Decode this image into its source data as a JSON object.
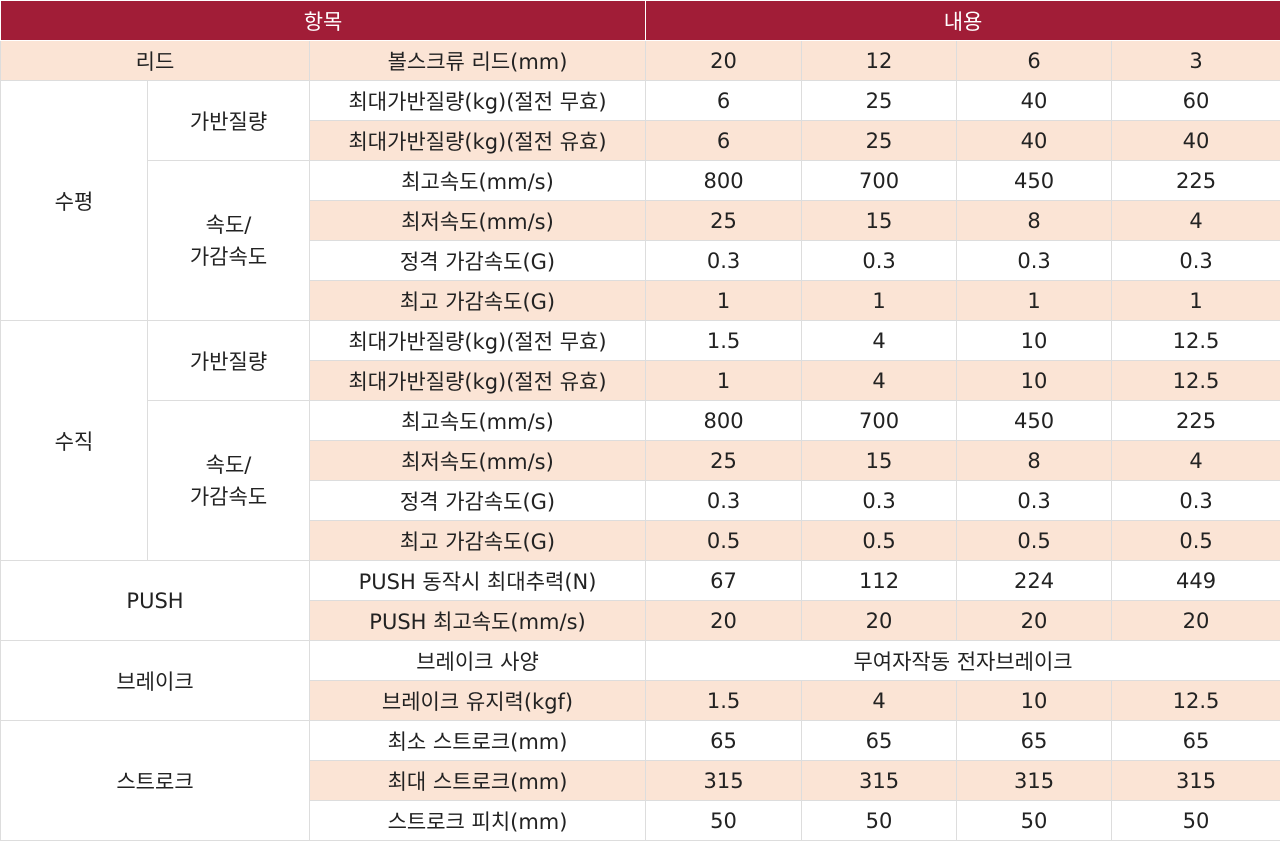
{
  "header": {
    "item": "항목",
    "content": "내용"
  },
  "lead": {
    "label": "리드",
    "sub": "볼스크류 리드(mm)",
    "values": [
      "20",
      "12",
      "6",
      "3"
    ]
  },
  "horizontal": {
    "label": "수평",
    "payload_group": "가반질량",
    "speed_group_line1": "속도/",
    "speed_group_line2": "가감속도",
    "rows": [
      {
        "label": "최대가반질량(kg)(절전 무효)",
        "values": [
          "6",
          "25",
          "40",
          "60"
        ]
      },
      {
        "label": "최대가반질량(kg)(절전 유효)",
        "values": [
          "6",
          "25",
          "40",
          "40"
        ]
      },
      {
        "label": "최고속도(mm/s)",
        "values": [
          "800",
          "700",
          "450",
          "225"
        ]
      },
      {
        "label": "최저속도(mm/s)",
        "values": [
          "25",
          "15",
          "8",
          "4"
        ]
      },
      {
        "label": "정격 가감속도(G)",
        "values": [
          "0.3",
          "0.3",
          "0.3",
          "0.3"
        ]
      },
      {
        "label": "최고 가감속도(G)",
        "values": [
          "1",
          "1",
          "1",
          "1"
        ]
      }
    ]
  },
  "vertical": {
    "label": "수직",
    "payload_group": "가반질량",
    "speed_group_line1": "속도/",
    "speed_group_line2": "가감속도",
    "rows": [
      {
        "label": "최대가반질량(kg)(절전 무효)",
        "values": [
          "1.5",
          "4",
          "10",
          "12.5"
        ]
      },
      {
        "label": "최대가반질량(kg)(절전 유효)",
        "values": [
          "1",
          "4",
          "10",
          "12.5"
        ]
      },
      {
        "label": "최고속도(mm/s)",
        "values": [
          "800",
          "700",
          "450",
          "225"
        ]
      },
      {
        "label": "최저속도(mm/s)",
        "values": [
          "25",
          "15",
          "8",
          "4"
        ]
      },
      {
        "label": "정격 가감속도(G)",
        "values": [
          "0.3",
          "0.3",
          "0.3",
          "0.3"
        ]
      },
      {
        "label": "최고 가감속도(G)",
        "values": [
          "0.5",
          "0.5",
          "0.5",
          "0.5"
        ]
      }
    ]
  },
  "push": {
    "label": "PUSH",
    "rows": [
      {
        "label": "PUSH 동작시 최대추력(N)",
        "values": [
          "67",
          "112",
          "224",
          "449"
        ]
      },
      {
        "label": "PUSH 최고속도(mm/s)",
        "values": [
          "20",
          "20",
          "20",
          "20"
        ]
      }
    ]
  },
  "brake": {
    "label": "브레이크",
    "spec_label": "브레이크 사양",
    "spec_value": "무여자작동 전자브레이크",
    "hold": {
      "label": "브레이크 유지력(kgf)",
      "values": [
        "1.5",
        "4",
        "10",
        "12.5"
      ]
    }
  },
  "stroke": {
    "label": "스트로크",
    "rows": [
      {
        "label": "최소 스트로크(mm)",
        "values": [
          "65",
          "65",
          "65",
          "65"
        ]
      },
      {
        "label": "최대 스트로크(mm)",
        "values": [
          "315",
          "315",
          "315",
          "315"
        ]
      },
      {
        "label": "스트로크 피치(mm)",
        "values": [
          "50",
          "50",
          "50",
          "50"
        ]
      }
    ]
  },
  "colors": {
    "header_bg": "#a11d37",
    "header_text": "#ffffff",
    "highlight_row": "#fbe4d5",
    "border": "#dddddd"
  }
}
